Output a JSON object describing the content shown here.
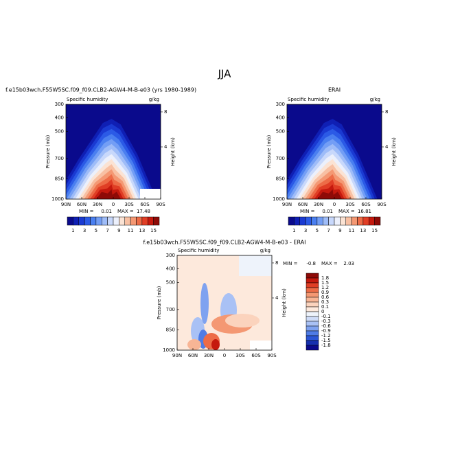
{
  "chart_data": {
    "type": "contour",
    "title": "JJA",
    "panels": [
      {
        "title": "f.e15b03wch.F55W5SC.f09_f09.CLB2-AGW4-M-B-e03 (yrs 1980-1989)",
        "subtitle": "Specific humidity",
        "units": "g/kg",
        "ylabel": "Pressure (mb)",
        "y2label": "Height (km)",
        "xlim": [
          90,
          -90
        ],
        "xticks": [
          {
            "value": 90,
            "label": "90N"
          },
          {
            "value": 60,
            "label": "60N"
          },
          {
            "value": 30,
            "label": "30N"
          },
          0,
          {
            "value": -30,
            "label": "30S"
          },
          {
            "value": -60,
            "label": "60S"
          },
          {
            "value": -90,
            "label": "90S"
          }
        ],
        "ylim": [
          300,
          1000
        ],
        "yticks": [
          300,
          400,
          500,
          700,
          850,
          1000
        ],
        "y2lim": [
          8.86,
          -1.96
        ],
        "y2ticks": [
          8,
          4
        ],
        "min_label": "MIN =",
        "min": 0.01,
        "max_label": "MAX =",
        "max": 17.48,
        "levels": [
          1,
          3,
          5,
          7,
          9,
          11,
          13,
          15
        ],
        "colors": [
          "#0a0a8c",
          "#0f1fb4",
          "#1a3ad2",
          "#2b5ae6",
          "#4a7ff0",
          "#739ef5",
          "#9ebcf8",
          "#c8d8fb",
          "#ecf0fc",
          "#fbe3d4",
          "#f8c0a3",
          "#f49873",
          "#ed6c47",
          "#e03e25",
          "#c5190e",
          "#8e0a07"
        ]
      },
      {
        "title": "ERAI",
        "subtitle": "Specific humidity",
        "units": "g/kg",
        "ylabel": "Pressure (mb)",
        "y2label": "Height (km)",
        "xlim": [
          90,
          -90
        ],
        "xticks": [
          {
            "value": 90,
            "label": "90N"
          },
          {
            "value": 60,
            "label": "60N"
          },
          {
            "value": 30,
            "label": "30N"
          },
          0,
          {
            "value": -30,
            "label": "30S"
          },
          {
            "value": -60,
            "label": "60S"
          },
          {
            "value": -90,
            "label": "90S"
          }
        ],
        "ylim": [
          300,
          1000
        ],
        "yticks": [
          300,
          400,
          500,
          700,
          850,
          1000
        ],
        "y2lim": [
          8.86,
          -1.96
        ],
        "y2ticks": [
          8,
          4
        ],
        "min_label": "MIN =",
        "min": 0.01,
        "max_label": "MAX =",
        "max": 16.81,
        "levels": [
          1,
          3,
          5,
          7,
          9,
          11,
          13,
          15
        ],
        "colors": [
          "#0a0a8c",
          "#0f1fb4",
          "#1a3ad2",
          "#2b5ae6",
          "#4a7ff0",
          "#739ef5",
          "#9ebcf8",
          "#c8d8fb",
          "#ecf0fc",
          "#fbe3d4",
          "#f8c0a3",
          "#f49873",
          "#ed6c47",
          "#e03e25",
          "#c5190e",
          "#8e0a07"
        ]
      },
      {
        "title": "f.e15b03wch.F55W5SC.f09_f09.CLB2-AGW4-M-B-e03 - ERAI",
        "subtitle": "Specific humidity",
        "units": "g/kg",
        "ylabel": "Pressure (mb)",
        "y2label": "Height (km)",
        "xlim": [
          90,
          -90
        ],
        "xticks": [
          {
            "value": 90,
            "label": "90N"
          },
          {
            "value": 60,
            "label": "60N"
          },
          {
            "value": 30,
            "label": "30N"
          },
          0,
          {
            "value": -30,
            "label": "30S"
          },
          {
            "value": -60,
            "label": "60S"
          },
          {
            "value": -90,
            "label": "90S"
          }
        ],
        "ylim": [
          300,
          1000
        ],
        "yticks": [
          300,
          400,
          500,
          700,
          850,
          1000
        ],
        "y2lim": [
          8.86,
          -1.96
        ],
        "y2ticks": [
          8,
          4
        ],
        "min_label": "MIN =",
        "min": -0.8,
        "max_label": "MAX =",
        "max": 2.03,
        "levels": [
          1.8,
          1.5,
          1.2,
          0.9,
          0.6,
          0.3,
          0.1,
          0,
          -0.1,
          -0.3,
          -0.6,
          -0.9,
          -1.2,
          -1.5,
          -1.8
        ],
        "colors": [
          "#8e0a07",
          "#c5190e",
          "#e03e25",
          "#ed6c47",
          "#f49873",
          "#f8b595",
          "#fbd3bd",
          "#fde9dc",
          "#eef3fb",
          "#cfdcf8",
          "#a9c1f5",
          "#7fa2f0",
          "#4f7ce6",
          "#2b56d6",
          "#1530b0",
          "#0a0a8c"
        ]
      }
    ]
  }
}
